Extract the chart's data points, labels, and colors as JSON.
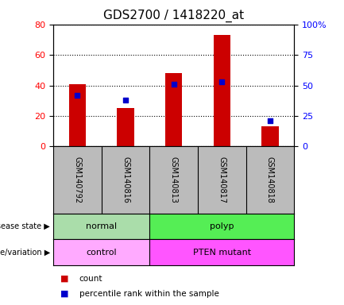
{
  "title": "GDS2700 / 1418220_at",
  "samples": [
    "GSM140792",
    "GSM140816",
    "GSM140813",
    "GSM140817",
    "GSM140818"
  ],
  "counts": [
    41,
    25,
    48,
    73,
    13
  ],
  "percentiles": [
    42,
    38,
    51,
    53,
    21
  ],
  "left_ylim": [
    0,
    80
  ],
  "right_ylim": [
    0,
    100
  ],
  "left_yticks": [
    0,
    20,
    40,
    60,
    80
  ],
  "right_yticks": [
    0,
    25,
    50,
    75,
    100
  ],
  "right_yticklabels": [
    "0",
    "25",
    "50",
    "75",
    "100%"
  ],
  "bar_color": "#cc0000",
  "dot_color": "#0000cc",
  "xlabel_bg_color": "#bbbbbb",
  "disease_normal_color": "#aaddaa",
  "disease_polyp_color": "#55ee55",
  "genotype_control_color": "#ffaaff",
  "genotype_mutant_color": "#ff55ff",
  "background_color": "#ffffff",
  "title_fontsize": 11,
  "tick_fontsize": 8,
  "annot_fontsize": 8,
  "label_fontsize": 7
}
